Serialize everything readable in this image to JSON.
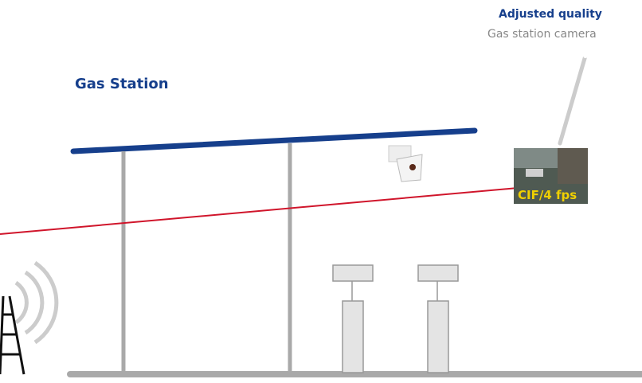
{
  "title": "Gas Station",
  "callout": {
    "title": "Adjusted quality",
    "subtitle": "Gas station camera"
  },
  "thumbnail": {
    "label": "CIF/4 fps"
  }
}
